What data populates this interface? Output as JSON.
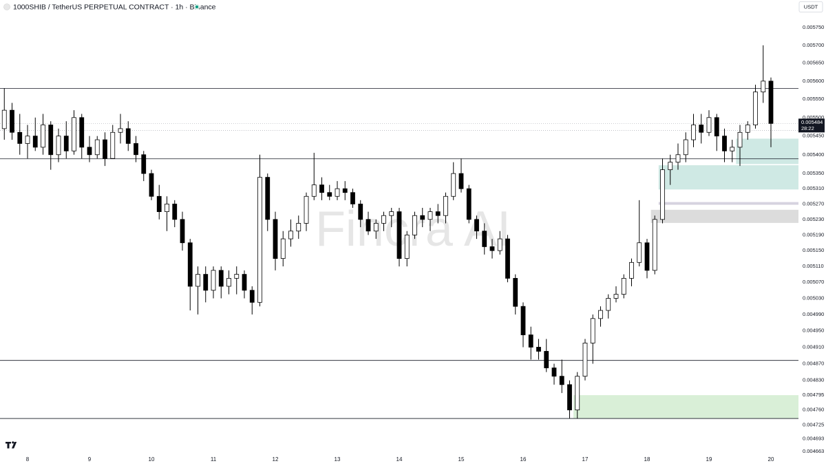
{
  "chart_data": {
    "type": "candlestick",
    "title": "1000SHIB / TetherUS PERPETUAL CONTRACT · 1h · Binance",
    "currency": "USDT",
    "watermark": "Fincra AI",
    "countdown": "28:22",
    "last_price": 0.005484,
    "log_scale": true,
    "grid": false,
    "up_color": "#ffffff",
    "down_color": "#000000",
    "wick_color": "#000000",
    "categories": [
      null,
      null,
      null,
      "8",
      null,
      null,
      null,
      null,
      null,
      null,
      null,
      "9",
      null,
      null,
      null,
      null,
      null,
      null,
      null,
      "10",
      null,
      null,
      null,
      null,
      null,
      null,
      null,
      "11",
      null,
      null,
      null,
      null,
      null,
      null,
      null,
      "12",
      null,
      null,
      null,
      null,
      null,
      null,
      null,
      "13",
      null,
      null,
      null,
      null,
      null,
      null,
      null,
      "14",
      null,
      null,
      null,
      null,
      null,
      null,
      null,
      "15",
      null,
      null,
      null,
      null,
      null,
      null,
      null,
      "16",
      null,
      null,
      null,
      null,
      null,
      null,
      null,
      "17",
      null,
      null,
      null,
      null,
      null,
      null,
      null,
      "18",
      null,
      null,
      null,
      null,
      null,
      null,
      null,
      "19",
      null,
      null,
      null,
      null,
      null,
      null,
      null,
      "20"
    ],
    "open": [
      0.00547,
      0.00552,
      0.00546,
      0.00543,
      0.00545,
      0.00542,
      0.00548,
      0.0054,
      0.00545,
      0.00541,
      0.0055,
      0.00542,
      0.0054,
      0.00544,
      0.00539,
      0.00546,
      0.00547,
      0.00543,
      0.0054,
      0.00535,
      0.00529,
      0.00525,
      0.00527,
      0.00523,
      0.00517,
      0.00506,
      0.00509,
      0.00505,
      0.0051,
      0.00506,
      0.00508,
      0.00509,
      0.00505,
      0.00502,
      0.00534,
      0.00523,
      0.00513,
      0.00518,
      0.0052,
      0.00522,
      0.00529,
      0.00532,
      0.0053,
      0.00529,
      0.00531,
      0.0053,
      0.00527,
      0.00523,
      0.0052,
      0.00522,
      0.00524,
      0.00525,
      0.00513,
      0.00519,
      0.00524,
      0.00523,
      0.00525,
      0.00524,
      0.00529,
      0.00535,
      0.00531,
      0.00523,
      0.0052,
      0.00516,
      0.00515,
      0.00518,
      0.00508,
      0.00501,
      0.00494,
      0.00491,
      0.0049,
      0.00486,
      0.00484,
      0.00482,
      0.00476,
      0.00484,
      0.00492,
      0.00498,
      0.005,
      0.00503,
      0.00504,
      0.00508,
      0.00512,
      0.00517,
      0.0051,
      0.00523,
      0.00536,
      0.00538,
      0.0054,
      0.00544,
      0.00548,
      0.00546,
      0.0055,
      0.00545,
      0.00541,
      0.00542,
      0.00546,
      0.00548,
      0.00557,
      0.0056
    ],
    "high": [
      0.00558,
      0.00554,
      0.00551,
      0.00548,
      0.0055,
      0.00551,
      0.00549,
      0.00547,
      0.00549,
      0.00552,
      0.00551,
      0.00545,
      0.00545,
      0.00546,
      0.00548,
      0.00551,
      0.00549,
      0.00545,
      0.00541,
      0.00536,
      0.00532,
      0.00529,
      0.00528,
      0.00525,
      0.00518,
      0.00511,
      0.00511,
      0.00511,
      0.00511,
      0.0051,
      0.00511,
      0.0051,
      0.00506,
      0.0054,
      0.00535,
      0.00525,
      0.0052,
      0.00523,
      0.00524,
      0.0053,
      0.005405,
      0.00534,
      0.00532,
      0.00533,
      0.00533,
      0.00531,
      0.00528,
      0.00525,
      0.00523,
      0.00525,
      0.00526,
      0.00526,
      0.0052,
      0.00525,
      0.00526,
      0.00526,
      0.00527,
      0.0053,
      0.00538,
      0.00539,
      0.00532,
      0.00524,
      0.00522,
      0.00518,
      0.0052,
      0.00519,
      0.00509,
      0.00502,
      0.00496,
      0.00493,
      0.00493,
      0.00487,
      0.00488,
      0.00483,
      0.00485,
      0.00493,
      0.00499,
      0.00501,
      0.00504,
      0.00506,
      0.00509,
      0.00513,
      0.00528,
      0.00518,
      0.00524,
      0.00539,
      0.0054,
      0.00543,
      0.00546,
      0.00551,
      0.00551,
      0.00552,
      0.00551,
      0.00547,
      0.00544,
      0.00548,
      0.00549,
      0.00559,
      0.0057,
      0.00561
    ],
    "low": [
      0.00544,
      0.00544,
      0.0054,
      0.00539,
      0.00541,
      0.0054,
      0.00536,
      0.00538,
      0.00539,
      0.0054,
      0.00539,
      0.00538,
      0.00539,
      0.00537,
      0.00539,
      0.00543,
      0.00541,
      0.00538,
      0.00533,
      0.00528,
      0.00523,
      0.0052,
      0.00521,
      0.00515,
      0.005,
      0.00499,
      0.00502,
      0.00503,
      0.00503,
      0.00504,
      0.00504,
      0.00503,
      0.00499,
      0.00501,
      0.0052,
      0.0051,
      0.00511,
      0.00516,
      0.00518,
      0.0052,
      0.00528,
      0.00528,
      0.00528,
      0.00528,
      0.00528,
      0.00526,
      0.00521,
      0.00519,
      0.00518,
      0.0052,
      0.00521,
      0.00511,
      0.00511,
      0.00518,
      0.00521,
      0.0052,
      0.00522,
      0.00522,
      0.00528,
      0.0053,
      0.00522,
      0.00518,
      0.00514,
      0.00513,
      0.00514,
      0.00507,
      0.00499,
      0.00491,
      0.00488,
      0.00488,
      0.00485,
      0.00482,
      0.0048,
      0.00474,
      0.00474,
      0.00483,
      0.00487,
      0.00496,
      0.00498,
      0.00502,
      0.00503,
      0.00506,
      0.00511,
      0.00508,
      0.00509,
      0.00522,
      0.00532,
      0.00536,
      0.00538,
      0.00542,
      0.00543,
      0.00545,
      0.00541,
      0.00538,
      0.00538,
      0.00537,
      0.00544,
      0.00547,
      0.00554,
      0.00542
    ],
    "close": [
      0.00552,
      0.00546,
      0.00543,
      0.00545,
      0.00542,
      0.00548,
      0.0054,
      0.00545,
      0.00541,
      0.0055,
      0.00542,
      0.0054,
      0.00544,
      0.00539,
      0.00546,
      0.00547,
      0.00543,
      0.0054,
      0.00535,
      0.00529,
      0.00525,
      0.00527,
      0.00523,
      0.00517,
      0.00506,
      0.00509,
      0.00505,
      0.0051,
      0.00506,
      0.00508,
      0.00509,
      0.00505,
      0.00502,
      0.00534,
      0.00523,
      0.00513,
      0.00518,
      0.0052,
      0.00522,
      0.00529,
      0.00532,
      0.0053,
      0.00529,
      0.00531,
      0.0053,
      0.00527,
      0.00523,
      0.0052,
      0.00522,
      0.00524,
      0.00525,
      0.00513,
      0.00519,
      0.00524,
      0.00523,
      0.00525,
      0.00524,
      0.00529,
      0.00535,
      0.00531,
      0.00523,
      0.0052,
      0.00516,
      0.00515,
      0.00518,
      0.00508,
      0.00501,
      0.00494,
      0.00491,
      0.0049,
      0.00486,
      0.00484,
      0.00482,
      0.00476,
      0.00484,
      0.00492,
      0.00498,
      0.005,
      0.00503,
      0.00504,
      0.00508,
      0.00512,
      0.00517,
      0.0051,
      0.00523,
      0.00536,
      0.00538,
      0.0054,
      0.00544,
      0.00548,
      0.00546,
      0.0055,
      0.00545,
      0.00541,
      0.00542,
      0.00546,
      0.00548,
      0.00557,
      0.0056,
      0.005484
    ],
    "levels": [
      0.00558,
      0.005389,
      0.004878,
      0.00474
    ],
    "dotted_levels": [
      0.005484,
      0.005465
    ],
    "zones": [
      {
        "start": 95,
        "low": 0.005375,
        "high": 0.005443,
        "color": "#cfe9e4"
      },
      {
        "start": 85,
        "low": 0.005308,
        "high": 0.005372,
        "color": "#cfe9e4"
      },
      {
        "start": 85,
        "low": 0.005268,
        "high": 0.005275,
        "color": "#d6d3e0"
      },
      {
        "start": 84,
        "low": 0.005221,
        "high": 0.005255,
        "color": "#dcdcdc"
      },
      {
        "start": 74,
        "low": 0.00474,
        "high": 0.004795,
        "color": "#d9efd7"
      }
    ],
    "ylim": [
      0.004657,
      0.005829
    ],
    "yticks": [
      {
        "value": 0.00575,
        "label": "0.005750"
      },
      {
        "value": 0.0057,
        "label": "0.005700"
      },
      {
        "value": 0.00565,
        "label": "0.005650"
      },
      {
        "value": 0.0056,
        "label": "0.005600"
      },
      {
        "value": 0.00555,
        "label": "0.005550"
      },
      {
        "value": 0.0055,
        "label": "0.005500"
      },
      {
        "value": 0.00545,
        "label": "0.005450"
      },
      {
        "value": 0.0054,
        "label": "0.005400"
      },
      {
        "value": 0.00535,
        "label": "0.005350"
      },
      {
        "value": 0.00531,
        "label": "0.005310"
      },
      {
        "value": 0.00527,
        "label": "0.005270"
      },
      {
        "value": 0.00523,
        "label": "0.005230"
      },
      {
        "value": 0.00519,
        "label": "0.005190"
      },
      {
        "value": 0.00515,
        "label": "0.005150"
      },
      {
        "value": 0.00511,
        "label": "0.005110"
      },
      {
        "value": 0.00507,
        "label": "0.005070"
      },
      {
        "value": 0.00503,
        "label": "0.005030"
      },
      {
        "value": 0.00499,
        "label": "0.004990"
      },
      {
        "value": 0.00495,
        "label": "0.004950"
      },
      {
        "value": 0.00491,
        "label": "0.004910"
      },
      {
        "value": 0.00487,
        "label": "0.004870"
      },
      {
        "value": 0.00483,
        "label": "0.004830"
      },
      0.004795,
      {
        "value": 0.00476,
        "label": "0.004760"
      },
      0.004725,
      0.004693,
      0.004663
    ]
  }
}
